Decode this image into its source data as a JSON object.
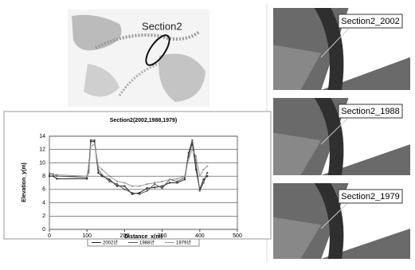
{
  "map_label": "Section2",
  "panels": [
    "Section2_2002",
    "Section2_1988",
    "Section2_1979"
  ],
  "chart_data": {
    "type": "line",
    "title": "Section2(2002,1988,1979)",
    "x_label": "Distance_x(m)",
    "y_label": "Elevation_y(m)",
    "xlim": [
      0,
      500
    ],
    "xticks": [
      0,
      100,
      200,
      300,
      400,
      500
    ],
    "ylim": [
      0,
      14
    ],
    "yticks": [
      0,
      2,
      4,
      6,
      8,
      10,
      12,
      14
    ],
    "grid": true,
    "x": [
      0,
      10,
      20,
      100,
      105,
      110,
      120,
      130,
      140,
      160,
      180,
      200,
      220,
      240,
      260,
      280,
      300,
      320,
      340,
      360,
      370,
      380,
      390,
      400,
      410,
      420
    ],
    "series": [
      {
        "name": "2002년",
        "color": "#222222",
        "values": [
          8,
          8,
          7.6,
          7.6,
          9,
          13.2,
          13.2,
          8.5,
          8,
          7.5,
          6.5,
          6.5,
          5.3,
          5.5,
          6.2,
          6.3,
          6.5,
          7,
          7,
          7.5,
          11,
          13,
          9,
          6,
          7.5,
          8
        ]
      },
      {
        "name": "1988년",
        "color": "#555555",
        "values": [
          8.3,
          8.3,
          8,
          7.8,
          9.5,
          13.4,
          13.4,
          9,
          8.2,
          7.2,
          6.8,
          6,
          5.5,
          5.3,
          5.8,
          6.8,
          6.2,
          7.5,
          7.2,
          7.8,
          11.5,
          13.4,
          10,
          5.8,
          7,
          8.5
        ]
      },
      {
        "name": "1979년",
        "color": "#999999",
        "values": [
          8.5,
          8.2,
          8.2,
          8,
          8.5,
          12.5,
          12.8,
          9.5,
          9,
          8,
          7.2,
          7,
          6.5,
          6.5,
          6.8,
          7,
          7.2,
          7.5,
          7.6,
          8,
          10.5,
          12,
          11,
          8,
          9,
          9.5
        ]
      }
    ]
  }
}
